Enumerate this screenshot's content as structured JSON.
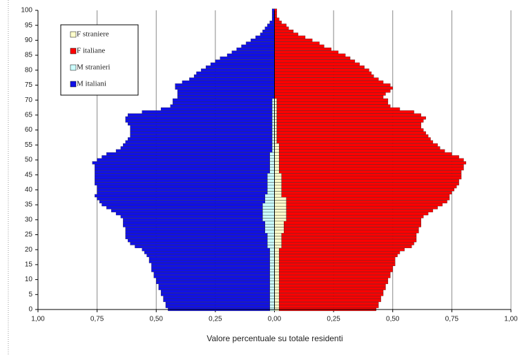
{
  "chart_data": {
    "type": "pyramid",
    "x_label": "Valore percentuale su totale residenti",
    "xlim": [
      -1,
      1
    ],
    "xticks": [
      {
        "value": -1,
        "label": "1,00"
      },
      {
        "value": -0.75,
        "label": "0,75"
      },
      {
        "value": -0.5,
        "label": "0,50"
      },
      {
        "value": -0.25,
        "label": "0,25"
      },
      {
        "value": 0,
        "label": "0,00"
      },
      {
        "value": 0.25,
        "label": "0,25"
      },
      {
        "value": 0.5,
        "label": "0,50"
      },
      {
        "value": 0.75,
        "label": "0,75"
      },
      {
        "value": 1,
        "label": "1,00"
      }
    ],
    "ylim": [
      0,
      100
    ],
    "yticks": [
      0,
      5,
      10,
      15,
      20,
      25,
      30,
      35,
      40,
      45,
      50,
      55,
      60,
      65,
      70,
      75,
      80,
      85,
      90,
      95,
      100
    ],
    "grid": true,
    "legend": "upper left",
    "series": [
      {
        "name": "F straniere",
        "color": "#ffffcc",
        "values": [
          0.02,
          0.02,
          0.02,
          0.02,
          0.02,
          0.02,
          0.02,
          0.02,
          0.02,
          0.02,
          0.02,
          0.02,
          0.02,
          0.02,
          0.02,
          0.02,
          0.02,
          0.02,
          0.02,
          0.02,
          0.02,
          0.03,
          0.03,
          0.03,
          0.03,
          0.03,
          0.04,
          0.04,
          0.04,
          0.04,
          0.05,
          0.05,
          0.05,
          0.05,
          0.05,
          0.05,
          0.05,
          0.05,
          0.03,
          0.03,
          0.03,
          0.03,
          0.03,
          0.03,
          0.03,
          0.03,
          0.02,
          0.02,
          0.02,
          0.02,
          0.02,
          0.02,
          0.02,
          0.02,
          0.02,
          0.02,
          0.01,
          0.01,
          0.01,
          0.01,
          0.01,
          0.01,
          0.01,
          0.01,
          0.01,
          0.01,
          0.01,
          0.01,
          0.01,
          0.01,
          0.01,
          0,
          0,
          0,
          0,
          0,
          0,
          0,
          0,
          0,
          0,
          0,
          0,
          0,
          0,
          0,
          0,
          0,
          0,
          0,
          0,
          0,
          0,
          0,
          0,
          0,
          0,
          0,
          0,
          0,
          0
        ]
      },
      {
        "name": "F italiane",
        "color": "#ff0000",
        "values": [
          0.41,
          0.42,
          0.42,
          0.43,
          0.43,
          0.44,
          0.44,
          0.45,
          0.45,
          0.46,
          0.46,
          0.47,
          0.47,
          0.48,
          0.48,
          0.49,
          0.49,
          0.49,
          0.5,
          0.51,
          0.53,
          0.55,
          0.56,
          0.57,
          0.57,
          0.57,
          0.57,
          0.57,
          0.58,
          0.58,
          0.57,
          0.58,
          0.6,
          0.62,
          0.64,
          0.66,
          0.68,
          0.69,
          0.71,
          0.72,
          0.73,
          0.74,
          0.75,
          0.75,
          0.76,
          0.76,
          0.77,
          0.78,
          0.78,
          0.79,
          0.78,
          0.76,
          0.73,
          0.7,
          0.68,
          0.67,
          0.66,
          0.65,
          0.64,
          0.63,
          0.62,
          0.61,
          0.61,
          0.62,
          0.63,
          0.61,
          0.58,
          0.52,
          0.48,
          0.47,
          0.47,
          0.46,
          0.47,
          0.49,
          0.5,
          0.49,
          0.46,
          0.44,
          0.42,
          0.41,
          0.4,
          0.38,
          0.36,
          0.34,
          0.32,
          0.3,
          0.27,
          0.24,
          0.21,
          0.19,
          0.16,
          0.13,
          0.1,
          0.08,
          0.06,
          0.05,
          0.03,
          0.02,
          0.01,
          0.01,
          0.01
        ]
      },
      {
        "name": "M stranieri",
        "color": "#ccffff",
        "values": [
          -0.02,
          -0.02,
          -0.02,
          -0.02,
          -0.02,
          -0.02,
          -0.02,
          -0.02,
          -0.02,
          -0.02,
          -0.02,
          -0.02,
          -0.02,
          -0.02,
          -0.02,
          -0.02,
          -0.02,
          -0.02,
          -0.02,
          -0.02,
          -0.02,
          -0.03,
          -0.03,
          -0.03,
          -0.03,
          -0.03,
          -0.04,
          -0.04,
          -0.04,
          -0.04,
          -0.05,
          -0.05,
          -0.05,
          -0.05,
          -0.05,
          -0.05,
          -0.04,
          -0.04,
          -0.04,
          -0.03,
          -0.03,
          -0.03,
          -0.03,
          -0.03,
          -0.03,
          -0.03,
          -0.02,
          -0.02,
          -0.02,
          -0.02,
          -0.02,
          -0.02,
          -0.02,
          -0.01,
          -0.01,
          -0.01,
          -0.01,
          -0.01,
          -0.01,
          -0.01,
          -0.01,
          -0.01,
          -0.01,
          -0.01,
          -0.01,
          -0.01,
          -0.01,
          -0.01,
          -0.01,
          -0.01,
          -0.01,
          0,
          0,
          0,
          0,
          0,
          0,
          0,
          0,
          0,
          0,
          0,
          0,
          0,
          0,
          0,
          0,
          0,
          0,
          0,
          0,
          0,
          0,
          0,
          0,
          0,
          0,
          0,
          0,
          0,
          0
        ]
      },
      {
        "name": "M italiani",
        "color": "#1010e8",
        "values": [
          -0.43,
          -0.44,
          -0.44,
          -0.45,
          -0.45,
          -0.46,
          -0.46,
          -0.47,
          -0.47,
          -0.48,
          -0.48,
          -0.49,
          -0.49,
          -0.5,
          -0.5,
          -0.5,
          -0.51,
          -0.51,
          -0.52,
          -0.53,
          -0.54,
          -0.56,
          -0.58,
          -0.59,
          -0.6,
          -0.6,
          -0.59,
          -0.59,
          -0.6,
          -0.6,
          -0.59,
          -0.6,
          -0.62,
          -0.64,
          -0.66,
          -0.68,
          -0.7,
          -0.71,
          -0.72,
          -0.72,
          -0.72,
          -0.72,
          -0.73,
          -0.73,
          -0.73,
          -0.73,
          -0.74,
          -0.74,
          -0.74,
          -0.75,
          -0.73,
          -0.71,
          -0.69,
          -0.66,
          -0.64,
          -0.63,
          -0.62,
          -0.61,
          -0.6,
          -0.6,
          -0.6,
          -0.6,
          -0.61,
          -0.62,
          -0.62,
          -0.61,
          -0.55,
          -0.47,
          -0.43,
          -0.42,
          -0.42,
          -0.41,
          -0.41,
          -0.41,
          -0.42,
          -0.42,
          -0.39,
          -0.36,
          -0.34,
          -0.33,
          -0.31,
          -0.29,
          -0.27,
          -0.25,
          -0.23,
          -0.2,
          -0.18,
          -0.16,
          -0.14,
          -0.12,
          -0.1,
          -0.08,
          -0.06,
          -0.05,
          -0.04,
          -0.03,
          -0.02,
          -0.01,
          -0.01,
          -0.01,
          -0.01
        ]
      }
    ]
  }
}
